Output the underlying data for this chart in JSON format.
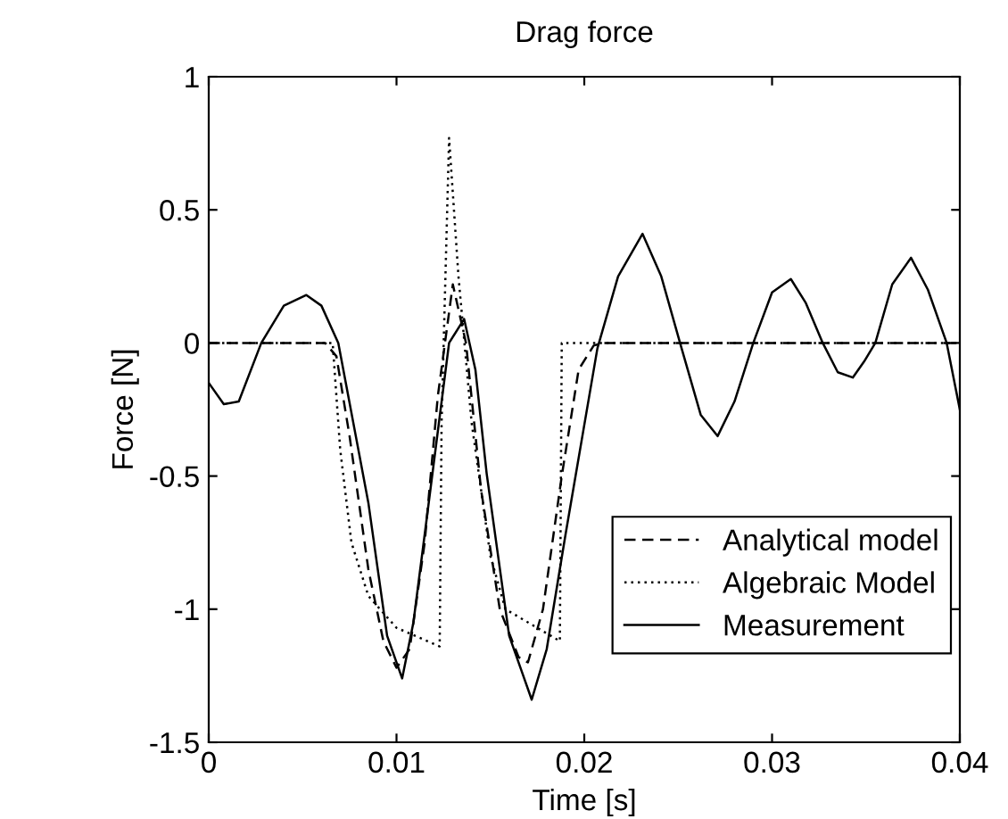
{
  "chart_data": {
    "type": "line",
    "title": "Drag force",
    "xlabel": "Time [s]",
    "ylabel": "Force [N]",
    "xlim": [
      0,
      0.04
    ],
    "ylim": [
      -1.5,
      1
    ],
    "xticks": [
      0,
      0.01,
      0.02,
      0.03,
      0.04
    ],
    "yticks": [
      -1.5,
      -1,
      -0.5,
      0,
      0.5,
      1
    ],
    "grid": false,
    "legend": "bottom right",
    "marker": "none",
    "series": [
      {
        "name": "Analytical model",
        "color": "#000000",
        "line_style": "dashed",
        "x": [
          0,
          0.0062,
          0.0068,
          0.0075,
          0.0085,
          0.0093,
          0.01,
          0.0107,
          0.0115,
          0.0122,
          0.013,
          0.0137,
          0.0145,
          0.0155,
          0.0165,
          0.017,
          0.0178,
          0.0188,
          0.0197,
          0.0205,
          0.021,
          0.04
        ],
        "values": [
          0,
          0,
          -0.05,
          -0.35,
          -0.85,
          -1.12,
          -1.22,
          -1.15,
          -0.75,
          -0.2,
          0.22,
          0.0,
          -0.55,
          -1.0,
          -1.18,
          -1.2,
          -1.0,
          -0.5,
          -0.1,
          -0.01,
          0,
          0
        ]
      },
      {
        "name": "Algebraic Model",
        "color": "#000000",
        "line_style": "dotted",
        "x": [
          0,
          0.0066,
          0.007,
          0.0076,
          0.0085,
          0.01,
          0.0123,
          0.0124,
          0.0128,
          0.0133,
          0.014,
          0.015,
          0.0158,
          0.0187,
          0.0188,
          0.04
        ],
        "values": [
          0,
          0,
          -0.4,
          -0.75,
          -0.95,
          -1.07,
          -1.14,
          -0.3,
          0.77,
          0.25,
          -0.3,
          -0.8,
          -1.0,
          -1.12,
          0,
          0
        ]
      },
      {
        "name": "Measurement",
        "color": "#000000",
        "line_style": "solid",
        "x": [
          0,
          0.0008,
          0.0016,
          0.0028,
          0.004,
          0.0052,
          0.006,
          0.0069,
          0.0085,
          0.0095,
          0.0103,
          0.0109,
          0.0115,
          0.0128,
          0.0136,
          0.0142,
          0.0148,
          0.016,
          0.0172,
          0.018,
          0.019,
          0.0207,
          0.0218,
          0.0231,
          0.0241,
          0.0251,
          0.0262,
          0.0271,
          0.028,
          0.029,
          0.03,
          0.031,
          0.0318,
          0.0327,
          0.0335,
          0.0343,
          0.0349,
          0.0355,
          0.0364,
          0.0374,
          0.0383,
          0.0393,
          0.04
        ],
        "values": [
          -0.15,
          -0.23,
          -0.22,
          0,
          0.14,
          0.18,
          0.14,
          0,
          -0.6,
          -1.1,
          -1.26,
          -1.05,
          -0.72,
          0,
          0.09,
          -0.1,
          -0.49,
          -1.1,
          -1.34,
          -1.15,
          -0.72,
          -0.02,
          0.25,
          0.41,
          0.25,
          0,
          -0.27,
          -0.35,
          -0.22,
          0,
          0.19,
          0.24,
          0.15,
          0,
          -0.11,
          -0.13,
          -0.07,
          0,
          0.22,
          0.32,
          0.2,
          0,
          -0.25
        ]
      }
    ]
  }
}
